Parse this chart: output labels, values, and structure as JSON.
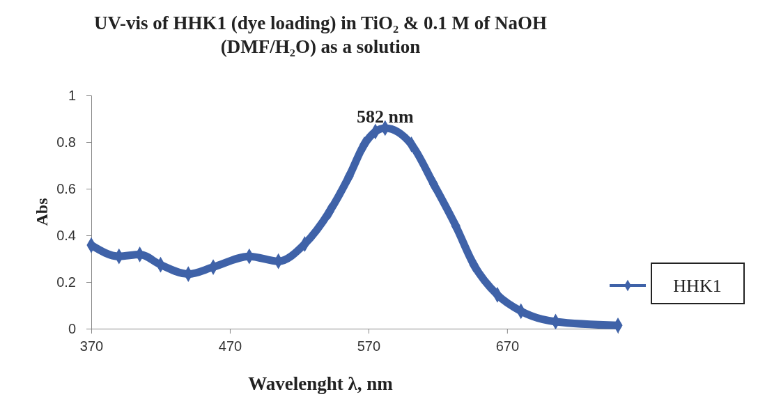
{
  "chart_data": {
    "type": "line",
    "title": "UV-vis of HHK1 (dye loading) in TiO₂ & 0.1 M of NaOH\n(DMF/H₂O) as a solution",
    "xlabel": "Wavelenght λ, nm",
    "ylabel": "Abs",
    "x": [
      370,
      390,
      405,
      420,
      440,
      458,
      484,
      505,
      524,
      542,
      556,
      567,
      575,
      582,
      601,
      617,
      633,
      646,
      663,
      680,
      705,
      750
    ],
    "series": [
      {
        "name": "HHK1",
        "color": "#3f62a8",
        "values": [
          0.358,
          0.31,
          0.318,
          0.274,
          0.234,
          0.264,
          0.31,
          0.289,
          0.363,
          0.503,
          0.653,
          0.79,
          0.845,
          0.86,
          0.79,
          0.62,
          0.44,
          0.274,
          0.145,
          0.075,
          0.03,
          0.014
        ]
      }
    ],
    "xlim": [
      370,
      750
    ],
    "xticks": [
      370,
      470,
      570,
      670
    ],
    "ylim": [
      0,
      1
    ],
    "yticks": [
      0,
      0.2,
      0.4,
      0.6,
      0.8,
      1
    ],
    "annotations": [
      {
        "text": "582 nm",
        "x": 582,
        "y": 0.86
      }
    ],
    "legend": "right",
    "marker": "diamond",
    "grid": false
  }
}
